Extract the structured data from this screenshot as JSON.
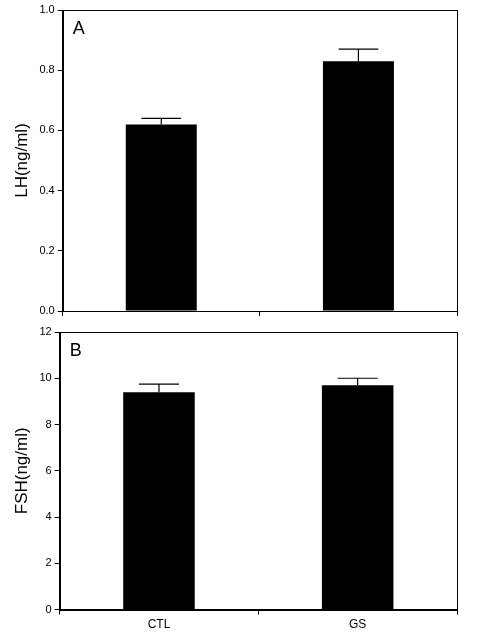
{
  "chart_data": [
    {
      "type": "bar",
      "annotation": "A",
      "y_label": "LH(ng/ml)",
      "categories": [
        "CTL",
        "GS"
      ],
      "values": [
        0.62,
        0.83
      ],
      "errors": [
        0.02,
        0.04
      ],
      "color": "#000000",
      "ylim": [
        0,
        1.0
      ],
      "yticks": [
        {
          "value": 0,
          "label": "0.0"
        },
        0.2,
        0.4,
        0.6,
        0.8,
        {
          "value": 1.0,
          "label": "1.0"
        }
      ],
      "grid": false,
      "tick_labels": "y"
    },
    {
      "type": "bar",
      "annotation": "B",
      "y_label": "FSH(ng/ml)",
      "categories": [
        "CTL",
        "GS"
      ],
      "values": [
        9.4,
        9.7
      ],
      "errors": [
        0.35,
        0.3
      ],
      "color": "#000000",
      "ylim": [
        0,
        12
      ],
      "yticks": [
        0,
        2,
        4,
        6,
        8,
        10,
        12
      ],
      "grid": false
    }
  ]
}
